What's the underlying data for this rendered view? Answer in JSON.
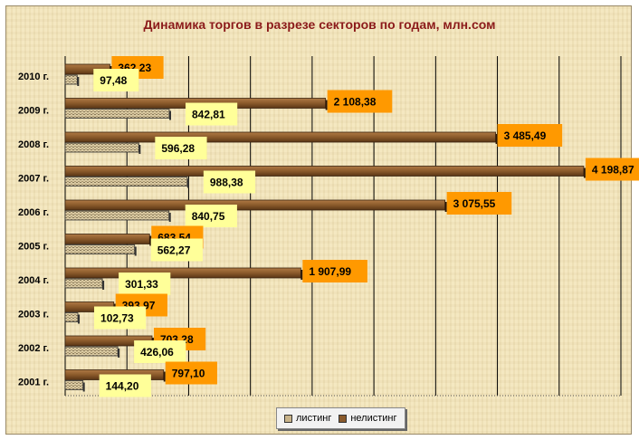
{
  "chart_data": {
    "type": "bar",
    "orientation": "horizontal",
    "title": "Динамика торгов в разрезе секторов по годам, млн.сом",
    "categories": [
      "2010 г.",
      "2009 г.",
      "2008 г.",
      "2007 г.",
      "2006 г.",
      "2005 г.",
      "2004 г.",
      "2003 г.",
      "2002 г.",
      "2001 г."
    ],
    "series": [
      {
        "name": "нелистинг",
        "color": "#8a5a2b",
        "values": [
          362.23,
          2108.38,
          3485.49,
          4198.87,
          3075.55,
          683.54,
          1907.99,
          393.97,
          703.28,
          797.1
        ],
        "labels": [
          "362,23",
          "2 108,38",
          "3 485,49",
          "4 198,87",
          "3 075,55",
          "683,54",
          "1 907,99",
          "393,97",
          "703,28",
          "797,10"
        ],
        "label_bg": "#ff9900"
      },
      {
        "name": "листинг",
        "color": "#c9b48a",
        "values": [
          97.48,
          842.81,
          596.28,
          988.38,
          840.75,
          562.27,
          301.33,
          102.73,
          426.06,
          144.2
        ],
        "labels": [
          "97,48",
          "842,81",
          "596,28",
          "988,38",
          "840,75",
          "562,27",
          "301,33",
          "102,73",
          "426,06",
          "144,20"
        ],
        "label_bg": "#ffff99"
      }
    ],
    "xlim": [
      0,
      4500
    ],
    "xgrid": true,
    "legend_position": "bottom"
  }
}
